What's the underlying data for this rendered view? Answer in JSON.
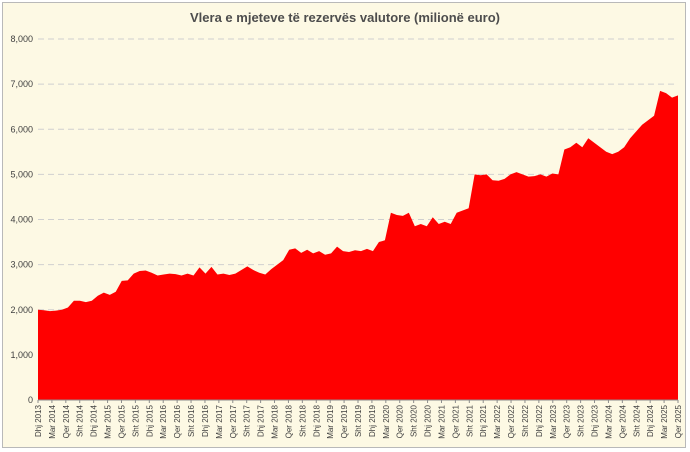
{
  "chart_data": {
    "type": "area",
    "title": "Vlera e mjeteve të rezervës valutore (milionë euro)",
    "xlabel": "",
    "ylabel": "",
    "ylim": [
      0,
      8000
    ],
    "yticks": [
      0,
      1000,
      2000,
      3000,
      4000,
      5000,
      6000,
      7000,
      8000
    ],
    "ytick_labels": [
      "0",
      "1,000",
      "2,000",
      "3,000",
      "4,000",
      "5,000",
      "6,000",
      "7,000",
      "8,000"
    ],
    "grid": "horizontal dashed",
    "legend": "none",
    "fill_color": "#ff0000",
    "background_color": "#fdf9e4",
    "x_labels": [
      "Dhj 2013",
      "Mar 2014",
      "Qer 2014",
      "Sht 2014",
      "Dhj 2014",
      "Mar 2015",
      "Qer 2015",
      "Sht 2015",
      "Dhj 2015",
      "Mar 2016",
      "Qer 2016",
      "Sht 2016",
      "Dhj 2016",
      "Mar 2017",
      "Qer 2017",
      "Sht 2017",
      "Dhj 2017",
      "Mar 2018",
      "Qer 2018",
      "Sht 2018",
      "Dhj 2018",
      "Mar 2019",
      "Qer 2019",
      "Sht 2019",
      "Dhj 2019",
      "Mar 2020",
      "Qer 2020",
      "Sht 2020",
      "Dhj 2020",
      "Mar 2021",
      "Qer 2021",
      "Sht 2021",
      "Dhj 2021",
      "Mar 2022",
      "Qer 2022",
      "Sht 2022",
      "Dhj 2022",
      "Mar 2023",
      "Qer 2023",
      "Sht 2023",
      "Dhj 2023",
      "Mar 2024",
      "Qer 2024",
      "Sht 2024",
      "Dhj 2024",
      "Mar 2025",
      "Qer 2025"
    ],
    "series": [
      {
        "values": [
          2000,
          1990,
          1970,
          1980,
          2000,
          2050,
          2200,
          2200,
          2170,
          2200,
          2310,
          2380,
          2330,
          2400,
          2640,
          2650,
          2800,
          2860,
          2870,
          2820,
          2760,
          2780,
          2800,
          2790,
          2760,
          2800,
          2760,
          2940,
          2800,
          2950,
          2780,
          2800,
          2770,
          2800,
          2880,
          2960,
          2880,
          2820,
          2780,
          2900,
          3000,
          3100,
          3330,
          3360,
          3260,
          3330,
          3250,
          3300,
          3220,
          3250,
          3400,
          3300,
          3280,
          3320,
          3300,
          3350,
          3300,
          3500,
          3540,
          4150,
          4100,
          4080,
          4150,
          3850,
          3900,
          3850,
          4050,
          3900,
          3950,
          3900,
          4150,
          4200,
          4250,
          5000,
          4980,
          5000,
          4870,
          4860,
          4900,
          5000,
          5050,
          5000,
          4950,
          4960,
          5000,
          4950,
          5020,
          5000,
          5550,
          5600,
          5700,
          5600,
          5800,
          5700,
          5600,
          5500,
          5450,
          5500,
          5600,
          5800,
          5950,
          6100,
          6200,
          6300,
          6850,
          6800,
          6700,
          6750
        ]
      }
    ]
  }
}
